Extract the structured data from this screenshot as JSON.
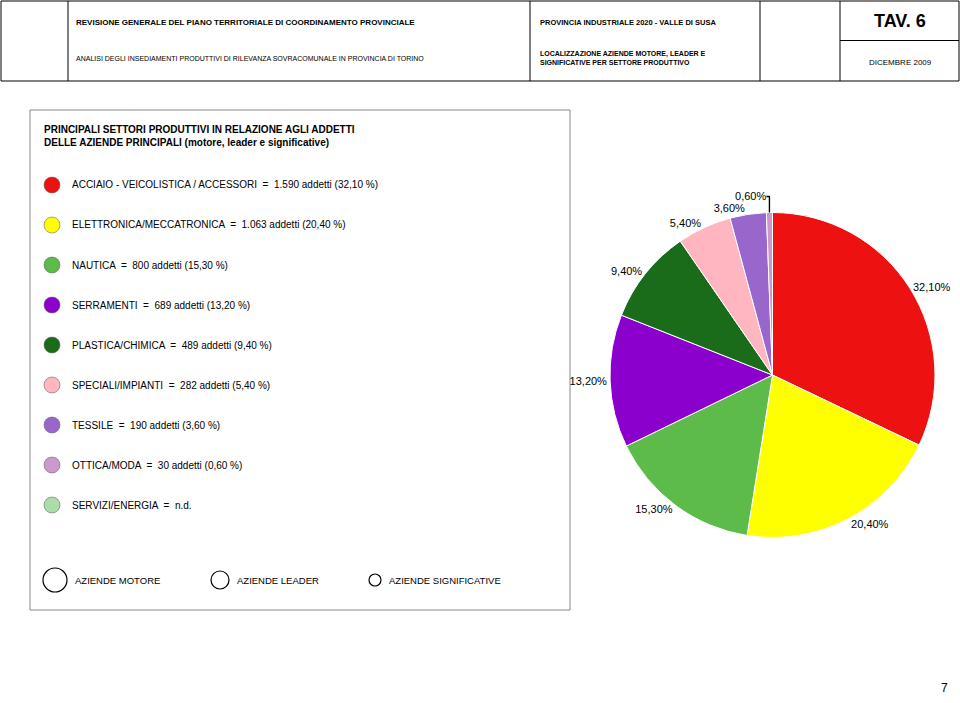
{
  "chart_data": {
    "type": "pie",
    "title": "PROVINCIA INDUSTRIALE 2020 - VALLE DI SUSA",
    "subtitle": "LOCALIZZAZIONE AZIENDE MOTORE, LEADER E\nSIGNIFICATIVE PER SETTORE PRODUTTIVO",
    "values": [
      32.1,
      20.4,
      15.3,
      13.2,
      9.4,
      5.4,
      3.6,
      0.6
    ],
    "value_labels": [
      "32,10%",
      "20,40%",
      "15,30%",
      "13,20%",
      "9,40%",
      "5,40%",
      "3,60%",
      "0,60%"
    ],
    "colors": [
      "#EE1111",
      "#FFFF00",
      "#5DBB4A",
      "#8B00CC",
      "#1A6B1A",
      "#FFB6C1",
      "#9966CC",
      "#CC99CC"
    ],
    "data_labels": true,
    "annotations": [
      {
        "text": "REVISIONE GENERALE DEL PIANO TERRITORIALE DI COORDINAMENTO PROVINCIALE"
      },
      {
        "text": "ANALISI DEGLI INSEDIAMENTI PRODUTTIVI DI RILEVANZA SOVRACOMUNALE IN PROVINCIA DI TORINO"
      },
      {
        "text": "TAV. 6"
      },
      {
        "text": "DICEMBRE 2009"
      },
      {
        "text": "PRINCIPALI SETTORI PRODUTTIVI IN RELAZIONE AGLI ADDETTI\nDELLE AZIENDE PRINCIPALI (motore, leader e significative)"
      },
      {
        "text": "ACCIAIO - VEICOLISTICA / ACCESSORI  =  1.590 addetti (32,10 %)",
        "color": "#EE1111"
      },
      {
        "text": "ELETTRONICA/MECCATRONICA  =  1.063 addetti (20,40 %)",
        "color": "#FFFF00"
      },
      {
        "text": "NAUTICA  =  800 addetti (15,30 %)",
        "color": "#5DBB4A"
      },
      {
        "text": "SERRAMENTI  =  689 addetti (13,20 %)",
        "color": "#8B00CC"
      },
      {
        "text": "PLASTICA/CHIMICA  =  489 addetti (9,40 %)",
        "color": "#1A6B1A"
      },
      {
        "text": "SPECIALI/IMPIANTI  =  282 addetti (5,40 %)",
        "color": "#FFB6C1"
      },
      {
        "text": "TESSILE  =  190 addetti (3,60 %)",
        "color": "#9966CC"
      },
      {
        "text": "OTTICA/MODA  =  30 addetti (0,60 %)",
        "color": "#CC99CC"
      },
      {
        "text": "SERVIZI/ENERGIA  =  n.d.",
        "color": "#AADDAA"
      },
      {
        "text": "AZIENDE MOTORE"
      },
      {
        "text": "AZIENDE LEADER"
      },
      {
        "text": "AZIENDE SIGNIFICATIVE"
      },
      {
        "text": "7"
      }
    ]
  }
}
